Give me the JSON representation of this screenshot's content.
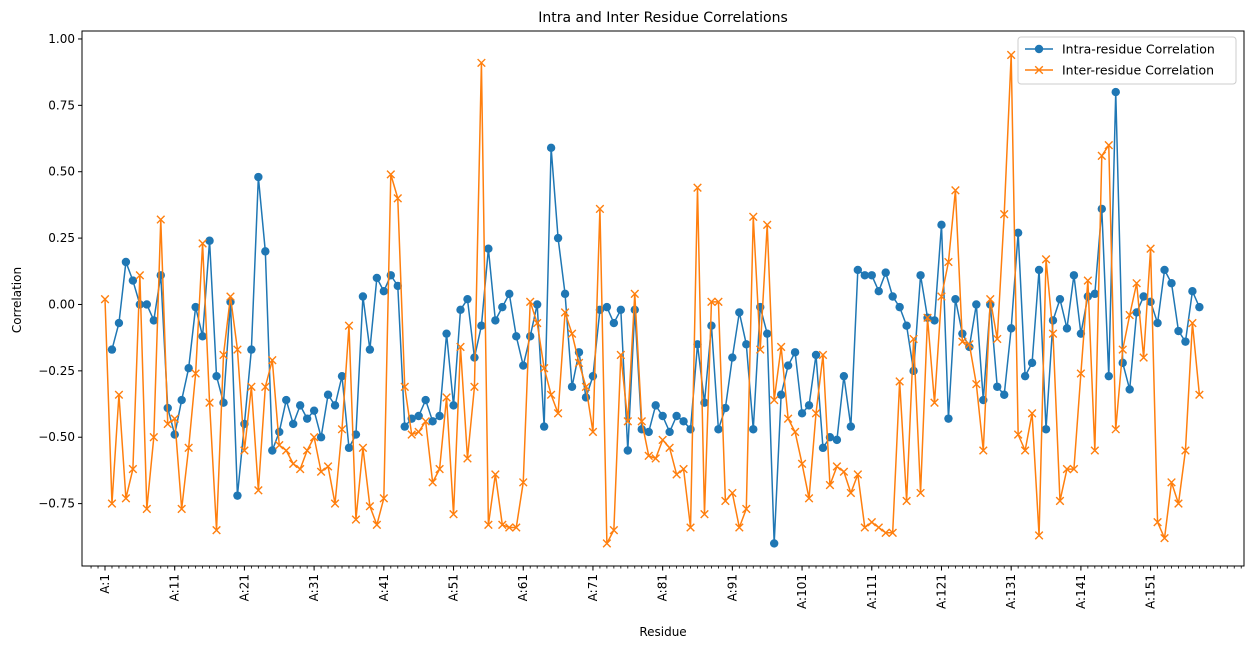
{
  "chart_data": {
    "type": "line",
    "title": "Intra and Inter Residue Correlations",
    "xlabel": "Residue",
    "ylabel": "Correlation",
    "ylim": [
      -0.985,
      1.03
    ],
    "yticks": [
      -0.75,
      -0.5,
      -0.25,
      0.0,
      0.25,
      0.5,
      0.75,
      1.0
    ],
    "ytick_labels": [
      "−0.75",
      "−0.50",
      "−0.25",
      "0.00",
      "0.25",
      "0.50",
      "0.75",
      "1.00"
    ],
    "xticks": [
      1,
      11,
      21,
      31,
      41,
      51,
      61,
      71,
      81,
      91,
      101,
      111,
      121,
      131,
      141,
      151
    ],
    "xtick_labels": [
      "A:1",
      "A:11",
      "A:21",
      "A:31",
      "A:41",
      "A:51",
      "A:61",
      "A:71",
      "A:81",
      "A:91",
      "A:101",
      "A:111",
      "A:121",
      "A:131",
      "A:141",
      "A:151"
    ],
    "legend_position": "top-right",
    "grid": false,
    "series": [
      {
        "name": "Intra-residue Correlation",
        "color": "#1f77b4",
        "marker": "circle",
        "values": [
          null,
          -0.17,
          -0.07,
          0.16,
          0.09,
          0.0,
          0.0,
          -0.06,
          0.11,
          -0.39,
          -0.49,
          -0.36,
          -0.24,
          -0.01,
          -0.12,
          0.24,
          -0.27,
          -0.37,
          0.01,
          -0.72,
          -0.45,
          -0.17,
          0.48,
          0.2,
          -0.55,
          -0.48,
          -0.36,
          -0.45,
          -0.38,
          -0.43,
          -0.4,
          -0.5,
          -0.34,
          -0.38,
          -0.27,
          -0.54,
          -0.49,
          0.03,
          -0.17,
          0.1,
          0.05,
          0.11,
          0.07,
          -0.46,
          -0.43,
          -0.42,
          -0.36,
          -0.44,
          -0.42,
          -0.11,
          -0.38,
          -0.02,
          0.02,
          -0.2,
          -0.08,
          0.21,
          -0.06,
          -0.01,
          0.04,
          -0.12,
          -0.23,
          -0.12,
          0.0,
          -0.46,
          0.59,
          0.25,
          0.04,
          -0.31,
          -0.18,
          -0.35,
          -0.27,
          -0.02,
          -0.01,
          -0.07,
          -0.02,
          -0.55,
          -0.02,
          -0.47,
          -0.48,
          -0.38,
          -0.42,
          -0.48,
          -0.42,
          -0.44,
          -0.47,
          -0.15,
          -0.37,
          -0.08,
          -0.47,
          -0.39,
          -0.2,
          -0.03,
          -0.15,
          -0.47,
          -0.01,
          -0.11,
          -0.9,
          -0.34,
          -0.23,
          -0.18,
          -0.41,
          -0.38,
          -0.19,
          -0.54,
          -0.5,
          -0.51,
          -0.27,
          -0.46,
          0.13,
          0.11,
          0.11,
          0.05,
          0.12,
          0.03,
          -0.01,
          -0.08,
          -0.25,
          0.11,
          -0.05,
          -0.06,
          0.3,
          -0.43,
          0.02,
          -0.11,
          -0.16,
          0.0,
          -0.36,
          0.0,
          -0.31,
          -0.34,
          -0.09,
          0.27,
          -0.27,
          -0.22,
          0.13,
          -0.47,
          -0.06,
          0.02,
          -0.09,
          0.11,
          -0.11,
          0.03,
          0.04,
          0.36,
          -0.27,
          0.8,
          -0.22,
          -0.32,
          -0.03,
          0.03,
          0.01,
          -0.07,
          0.13,
          0.08,
          -0.1,
          -0.14,
          0.05,
          -0.01
        ]
      },
      {
        "name": "Inter-residue Correlation",
        "color": "#ff7f0e",
        "marker": "x",
        "values": [
          0.02,
          -0.75,
          -0.34,
          -0.73,
          -0.62,
          0.11,
          -0.77,
          -0.5,
          0.32,
          -0.45,
          -0.43,
          -0.77,
          -0.54,
          -0.26,
          0.23,
          -0.37,
          -0.85,
          -0.19,
          0.03,
          -0.17,
          -0.55,
          -0.31,
          -0.7,
          -0.31,
          -0.21,
          -0.53,
          -0.55,
          -0.6,
          -0.62,
          -0.55,
          -0.5,
          -0.63,
          -0.61,
          -0.75,
          -0.47,
          -0.08,
          -0.81,
          -0.54,
          -0.76,
          -0.83,
          -0.73,
          0.49,
          0.4,
          -0.31,
          -0.49,
          -0.48,
          -0.44,
          -0.67,
          -0.62,
          -0.35,
          -0.79,
          -0.16,
          -0.58,
          -0.31,
          0.91,
          -0.83,
          -0.64,
          -0.83,
          -0.84,
          -0.84,
          -0.67,
          0.01,
          -0.07,
          -0.24,
          -0.34,
          -0.41,
          -0.03,
          -0.11,
          -0.22,
          -0.31,
          -0.48,
          0.36,
          -0.9,
          -0.85,
          -0.19,
          -0.44,
          0.04,
          -0.44,
          -0.57,
          -0.58,
          -0.51,
          -0.54,
          -0.64,
          -0.62,
          -0.84,
          0.44,
          -0.79,
          0.01,
          0.01,
          -0.74,
          -0.71,
          -0.84,
          -0.77,
          0.33,
          -0.17,
          0.3,
          -0.36,
          -0.16,
          -0.43,
          -0.48,
          -0.6,
          -0.73,
          -0.41,
          -0.19,
          -0.68,
          -0.61,
          -0.63,
          -0.71,
          -0.64,
          -0.84,
          -0.82,
          -0.84,
          -0.86,
          -0.86,
          -0.29,
          -0.74,
          -0.13,
          -0.71,
          -0.05,
          -0.37,
          0.03,
          0.16,
          0.43,
          -0.14,
          -0.15,
          -0.3,
          -0.55,
          0.02,
          -0.13,
          0.34,
          0.94,
          -0.49,
          -0.55,
          -0.41,
          -0.87,
          0.17,
          -0.11,
          -0.74,
          -0.62,
          -0.62,
          -0.26,
          0.09,
          -0.55,
          0.56,
          0.6,
          -0.47,
          -0.17,
          -0.04,
          0.08,
          -0.2,
          0.21,
          -0.82,
          -0.88,
          -0.67,
          -0.75,
          -0.55,
          -0.07,
          -0.34
        ]
      }
    ]
  }
}
